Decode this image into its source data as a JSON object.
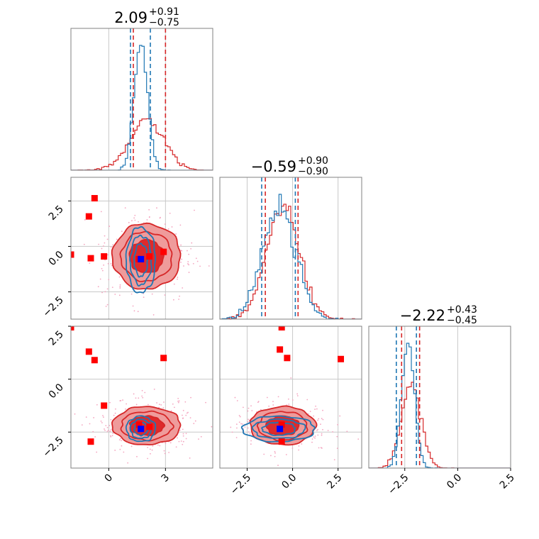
{
  "colors": {
    "red": "#d62728",
    "blue": "#1f77b4",
    "marker_red": "#ff0000",
    "marker_blue": "#0000ff",
    "grid": "#c8c8c8",
    "frame": "#808080",
    "fill_dark": "#dd2a2c",
    "fill_light": "#ef9b9b",
    "scatter": "#f4a6c0"
  },
  "chart_data": {
    "type": "scatter",
    "parameters": [
      "p1",
      "p2",
      "p3"
    ],
    "ranges": {
      "p1": [
        -2.0,
        5.5
      ],
      "p2": [
        -4.0,
        3.8
      ],
      "p3": [
        -4.2,
        2.5
      ]
    },
    "ticks": {
      "p1": [
        0,
        3
      ],
      "p2": [
        -2.5,
        0.0,
        2.5
      ],
      "p3": [
        -2.5,
        0.0,
        2.5
      ]
    },
    "tick_labels": {
      "p1": [
        "0",
        "3"
      ],
      "p2": [
        "−2.5",
        "0.0",
        "2.5"
      ],
      "p3": [
        "−2.5",
        "0.0",
        "2.5"
      ]
    },
    "titles": [
      {
        "param": "p1",
        "median": "2.09",
        "plus": "+0.91",
        "minus": "−0.75"
      },
      {
        "param": "p2",
        "median": "−0.59",
        "plus": "+0.90",
        "minus": "−0.90"
      },
      {
        "param": "p3",
        "median": "−2.22",
        "plus": "+0.43",
        "minus": "−0.45"
      }
    ],
    "quantile_lines": {
      "red": {
        "p1": [
          1.3,
          3.0
        ],
        "p2": [
          -1.5,
          0.3
        ],
        "p3": [
          -2.65,
          -1.8
        ]
      },
      "blue": {
        "p1": [
          1.15,
          2.2
        ],
        "p2": [
          -1.7,
          0.15
        ],
        "p3": [
          -2.9,
          -1.95
        ]
      }
    },
    "posterior_means": {
      "red": {
        "p1": 2.0,
        "p2": -0.55,
        "p3": -2.2
      },
      "blue": {
        "p1": 1.7,
        "p2": -0.75,
        "p3": -2.35
      }
    },
    "sigma": {
      "red": {
        "p1": 0.9,
        "p2": 0.9,
        "p3": 0.45
      },
      "blue": {
        "p1": 0.35,
        "p2": 0.9,
        "p3": 0.3
      }
    },
    "red_markers": [
      {
        "p1": -1.05,
        "p2": 1.65,
        "p3": 1.3
      },
      {
        "p1": -0.75,
        "p2": 2.65,
        "p3": 0.9
      },
      {
        "p1": -2.0,
        "p2": -0.45,
        "p3": 2.45
      },
      {
        "p1": -0.95,
        "p2": -0.65,
        "p3": -2.95
      },
      {
        "p1": -0.25,
        "p2": -0.55,
        "p3": -1.25
      },
      {
        "p1": 2.9,
        "p2": -0.3,
        "p3": 1.0
      },
      {
        "p1": 2.15,
        "p2": -0.55,
        "p3": -2.25
      },
      {
        "p1": 1.6,
        "p2": -0.7,
        "p3": -2.15
      }
    ],
    "red_markers_2d": {
      "p2_p3": [
        {
          "x": -0.6,
          "y": 2.45
        },
        {
          "x": -0.7,
          "y": 1.4
        },
        {
          "x": -0.3,
          "y": 1.0
        },
        {
          "x": 2.65,
          "y": 0.95
        },
        {
          "x": -0.6,
          "y": -2.95
        },
        {
          "x": -0.6,
          "y": -2.15
        }
      ]
    },
    "blue_marker": {
      "p1": 1.7,
      "p2": -0.7,
      "p3": -2.35
    },
    "blue_marker_p2p3": {
      "x": -0.7,
      "y": -2.35
    },
    "grid": true,
    "legend": "none"
  }
}
